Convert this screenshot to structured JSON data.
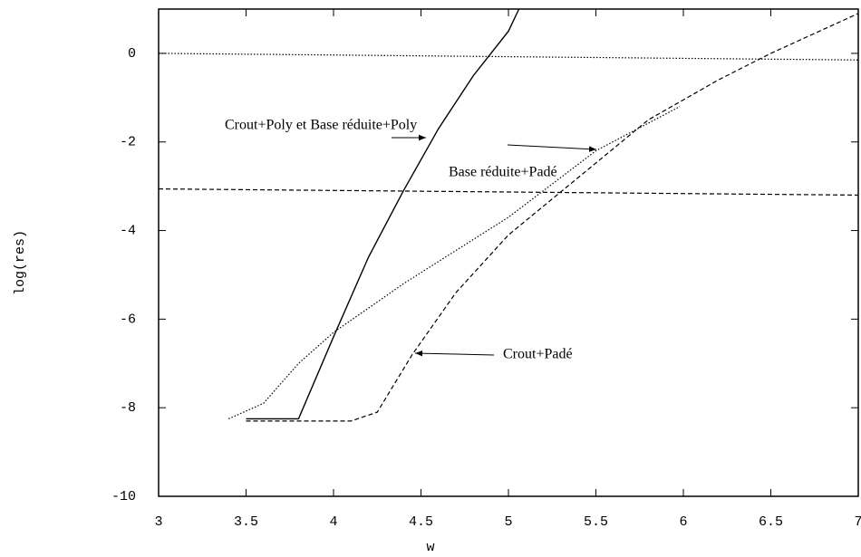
{
  "chart_data": {
    "type": "line",
    "xlabel": "w",
    "ylabel": "log(res)",
    "xlim": [
      3,
      7
    ],
    "ylim": [
      -10,
      1
    ],
    "xticks": [
      3,
      3.5,
      4,
      4.5,
      5,
      5.5,
      6,
      6.5,
      7
    ],
    "yticks": [
      -10,
      -8,
      -6,
      -4,
      -2,
      0
    ],
    "grid": false,
    "series": [
      {
        "color": "#000000",
        "style": "solid",
        "x": [
          3.5,
          3.8,
          4.0,
          4.2,
          4.4,
          4.6,
          4.8,
          5.0,
          5.06
        ],
        "values": [
          -8.25,
          -8.25,
          -6.4,
          -4.6,
          -3.1,
          -1.7,
          -0.5,
          0.5,
          1
        ]
      },
      {
        "color": "#000000",
        "style": "dotted",
        "x": [
          3.4,
          3.6,
          3.8,
          4.0,
          4.4,
          5.0,
          5.5,
          5.98
        ],
        "values": [
          -8.25,
          -7.9,
          -7.0,
          -6.3,
          -5.2,
          -3.7,
          -2.2,
          -1.2
        ]
      },
      {
        "color": "#000000",
        "style": "dashed",
        "x": [
          3.5,
          4.1,
          4.25,
          4.45,
          4.7,
          5.0,
          5.4,
          5.8,
          6.2,
          6.5,
          7
        ],
        "values": [
          -8.3,
          -8.3,
          -8.1,
          -6.8,
          -5.4,
          -4.1,
          -2.8,
          -1.5,
          -0.6,
          0,
          0.9
        ]
      },
      {
        "color": "#000000",
        "style": "dotted",
        "x": [
          3,
          7
        ],
        "values": [
          0,
          -0.15
        ]
      },
      {
        "color": "#000000",
        "style": "dashed",
        "x": [
          3,
          7
        ],
        "values": [
          -3.06,
          -3.2
        ]
      }
    ],
    "annotations": [
      "Crout+Poly et Base réduite+Poly",
      "Base réduite+Padé",
      "Crout+Padé"
    ]
  }
}
